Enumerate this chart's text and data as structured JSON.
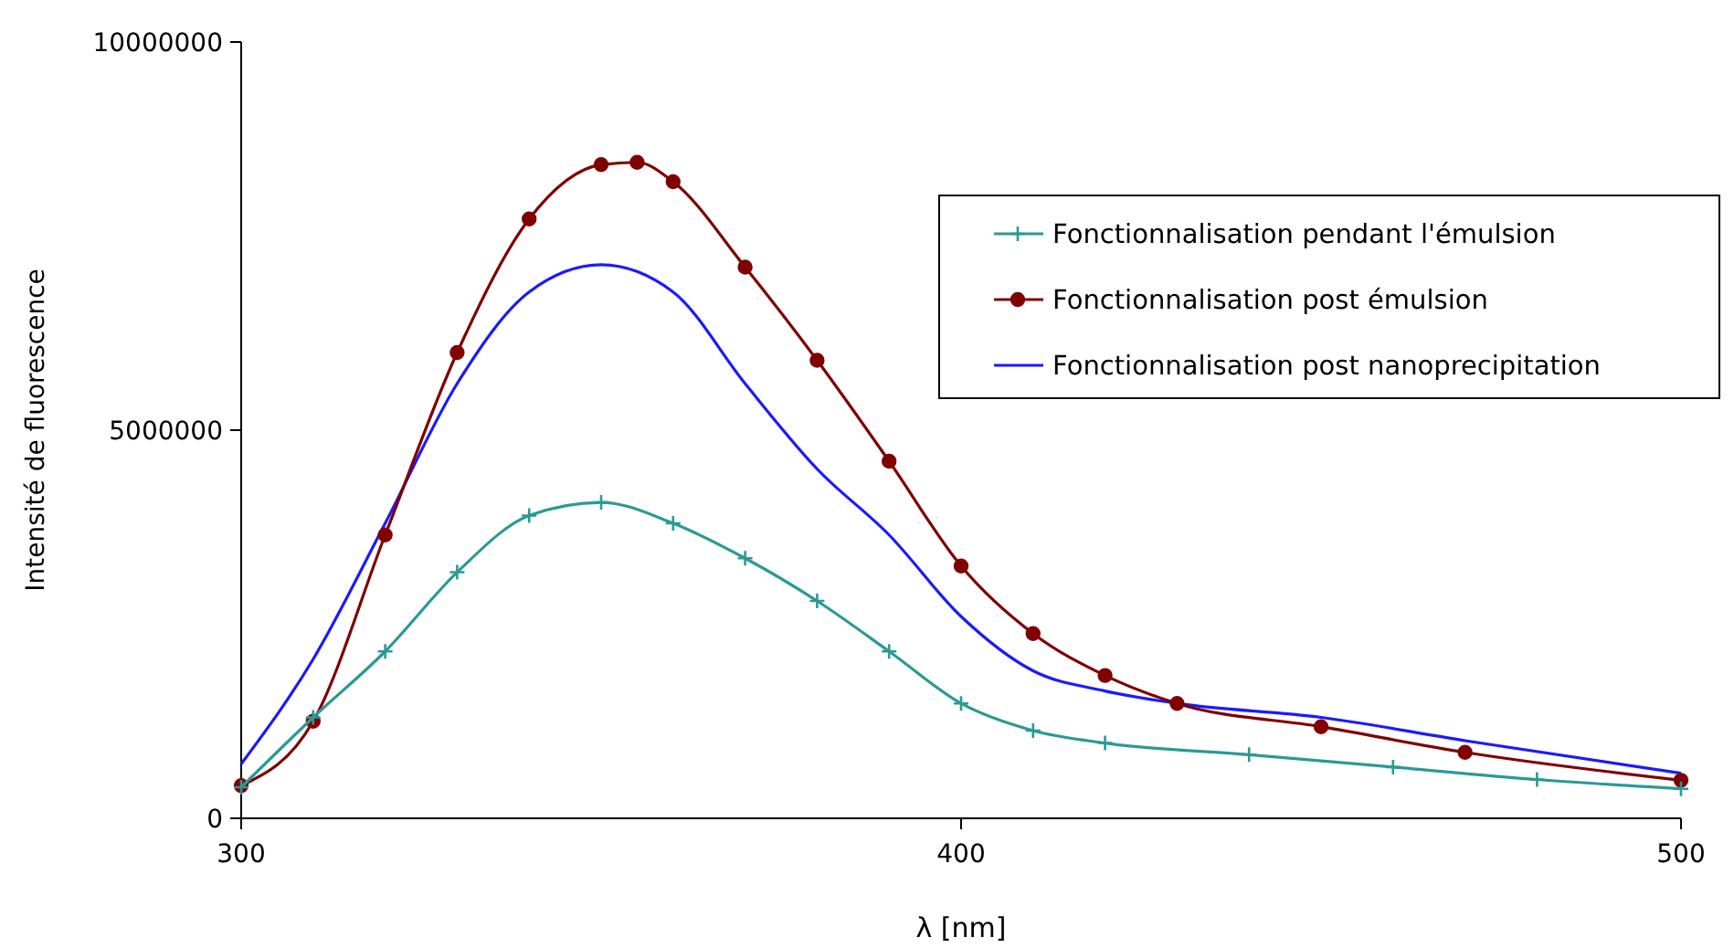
{
  "chart_data": {
    "type": "line",
    "xlabel": "λ [nm]",
    "ylabel": "Intensité de fluorescence",
    "xlim": [
      300,
      500
    ],
    "xticks": [
      300,
      400,
      500
    ],
    "ylim": [
      0,
      10000000
    ],
    "yticks": [
      0,
      5000000,
      10000000
    ],
    "grid": false,
    "legend": "top right",
    "series": [
      {
        "name": "Fonctionnalisation pendant l'émulsion",
        "color": "#2a9a96",
        "marker": "cross",
        "x": [
          300,
          310,
          320,
          330,
          340,
          350,
          360,
          370,
          380,
          390,
          400,
          410,
          420,
          440,
          460,
          480,
          500
        ],
        "values": [
          400000,
          1300000,
          2150000,
          3170000,
          3900000,
          4070000,
          3800000,
          3350000,
          2800000,
          2150000,
          1480000,
          1130000,
          970000,
          820000,
          660000,
          500000,
          380000
        ]
      },
      {
        "name": "Fonctionnalisation post émulsion",
        "color": "#800000",
        "marker": "circle",
        "x": [
          300,
          310,
          320,
          330,
          340,
          350,
          355,
          360,
          370,
          380,
          390,
          400,
          410,
          420,
          430,
          450,
          470,
          500
        ],
        "values": [
          420000,
          1250000,
          3650000,
          6000000,
          7720000,
          8420000,
          8450000,
          8200000,
          7100000,
          5900000,
          4600000,
          3250000,
          2380000,
          1840000,
          1480000,
          1180000,
          850000,
          490000
        ]
      },
      {
        "name": "Fonctionnalisation post nanoprecipitation",
        "color": "#1a1aff",
        "marker": "none",
        "x": [
          300,
          310,
          320,
          330,
          340,
          350,
          360,
          370,
          380,
          390,
          400,
          410,
          420,
          430,
          450,
          470,
          500
        ],
        "values": [
          700000,
          2050000,
          3800000,
          5600000,
          6780000,
          7130000,
          6780000,
          5600000,
          4500000,
          3650000,
          2600000,
          1900000,
          1640000,
          1480000,
          1300000,
          1000000,
          580000
        ]
      }
    ]
  }
}
